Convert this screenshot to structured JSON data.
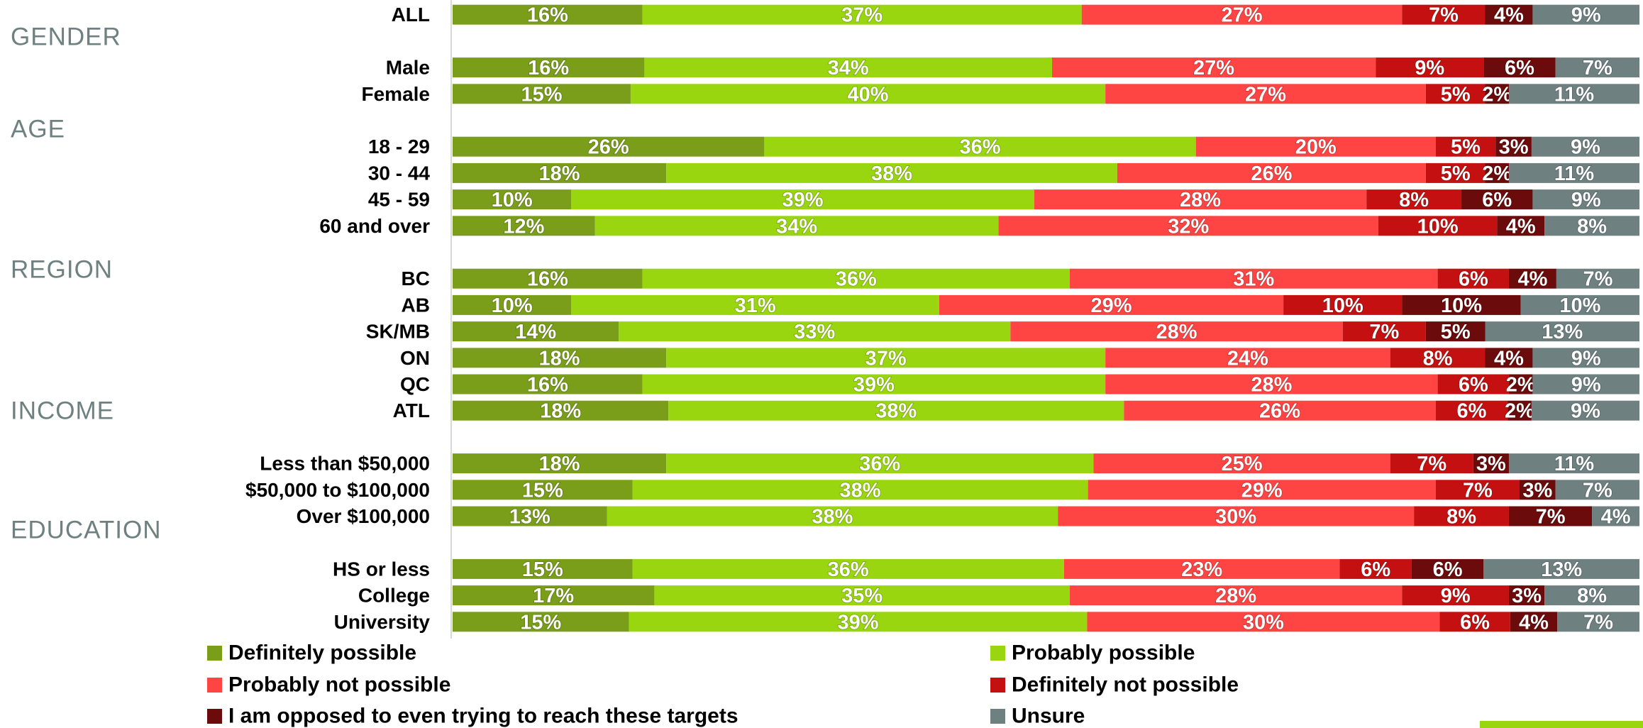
{
  "chart_data": {
    "type": "stacked-bar-h",
    "groups": [
      "GENDER",
      "AGE",
      "REGION",
      "INCOME",
      "EDUCATION"
    ],
    "categories": [
      "ALL",
      "Male",
      "Female",
      "18 - 29",
      "30 - 44",
      "45 - 59",
      "60 and over",
      "BC",
      "AB",
      "SK/MB",
      "ON",
      "QC",
      "ATL",
      "Less than $50,000",
      "$50,000 to $100,000",
      "Over $100,000",
      "HS or less",
      "College",
      "University"
    ],
    "series": [
      {
        "name": "Definitely possible",
        "color": "#7a9e1a",
        "values": [
          16,
          16,
          15,
          26,
          18,
          10,
          12,
          16,
          10,
          14,
          18,
          16,
          18,
          18,
          15,
          13,
          15,
          17,
          15
        ],
        "value_labels": [
          "16%",
          "16%",
          "15%",
          "26%",
          "18%",
          "10%",
          "12%",
          "16%",
          "10%",
          "14%",
          "18%",
          "16%",
          "18%",
          "18%",
          "15%",
          "13%",
          "15%",
          "17%",
          "15%"
        ]
      },
      {
        "name": "Probably possible",
        "color": "#99d60f",
        "values": [
          37,
          34,
          40,
          36,
          38,
          39,
          34,
          36,
          31,
          33,
          37,
          39,
          38,
          36,
          38,
          38,
          36,
          35,
          39
        ],
        "value_labels": [
          "37%",
          "34%",
          "40%",
          "36%",
          "38%",
          "39%",
          "34%",
          "36%",
          "31%",
          "33%",
          "37%",
          "39%",
          "38%",
          "36%",
          "38%",
          "38%",
          "36%",
          "35%",
          "39%"
        ]
      },
      {
        "name": "Probably not possible",
        "color": "#ff4444",
        "values": [
          27,
          27,
          27,
          20,
          26,
          28,
          32,
          31,
          29,
          28,
          24,
          28,
          26,
          25,
          29,
          30,
          23,
          28,
          30
        ],
        "value_labels": [
          "27%",
          "27%",
          "27%",
          "20%",
          "26%",
          "28%",
          "32%",
          "31%",
          "29%",
          "28%",
          "24%",
          "28%",
          "26%",
          "25%",
          "29%",
          "30%",
          "23%",
          "28%",
          "30%"
        ]
      },
      {
        "name": "Definitely not possible",
        "color": "#c41010",
        "values": [
          7,
          9,
          5,
          5,
          5,
          8,
          10,
          6,
          10,
          7,
          8,
          6,
          6,
          7,
          7,
          8,
          6,
          9,
          6
        ],
        "value_labels": [
          "7%",
          "9%",
          "5%",
          "5%",
          "5%",
          "8%",
          "10%",
          "6%",
          "10%",
          "7%",
          "8%",
          "6%",
          "6%",
          "7%",
          "7%",
          "8%",
          "6%",
          "9%",
          "6%"
        ]
      },
      {
        "name": "I am opposed to even trying to reach these targets",
        "color": "#6b0b0b",
        "values": [
          4,
          6,
          2,
          3,
          2,
          6,
          4,
          4,
          10,
          5,
          4,
          2,
          2,
          3,
          3,
          7,
          6,
          3,
          4
        ],
        "value_labels": [
          "4%",
          "6%",
          "2%",
          "3%",
          "2%",
          "6%",
          "4%",
          "4%",
          "10%",
          "5%",
          "4%",
          "2%",
          "2%",
          "3%",
          "3%",
          "7%",
          "6%",
          "3%",
          "4%"
        ]
      },
      {
        "name": "Unsure",
        "color": "#6e8080",
        "values": [
          9,
          7,
          11,
          9,
          11,
          9,
          8,
          7,
          10,
          13,
          9,
          9,
          9,
          11,
          7,
          4,
          13,
          8,
          7
        ],
        "value_labels": [
          "9%",
          "7%",
          "11%",
          "9%",
          "11%",
          "9%",
          "8%",
          "7%",
          "10%",
          "13%",
          "9%",
          "9%",
          "9%",
          "11%",
          "7%",
          "4%",
          "13%",
          "8%",
          "7%"
        ]
      }
    ]
  }
}
